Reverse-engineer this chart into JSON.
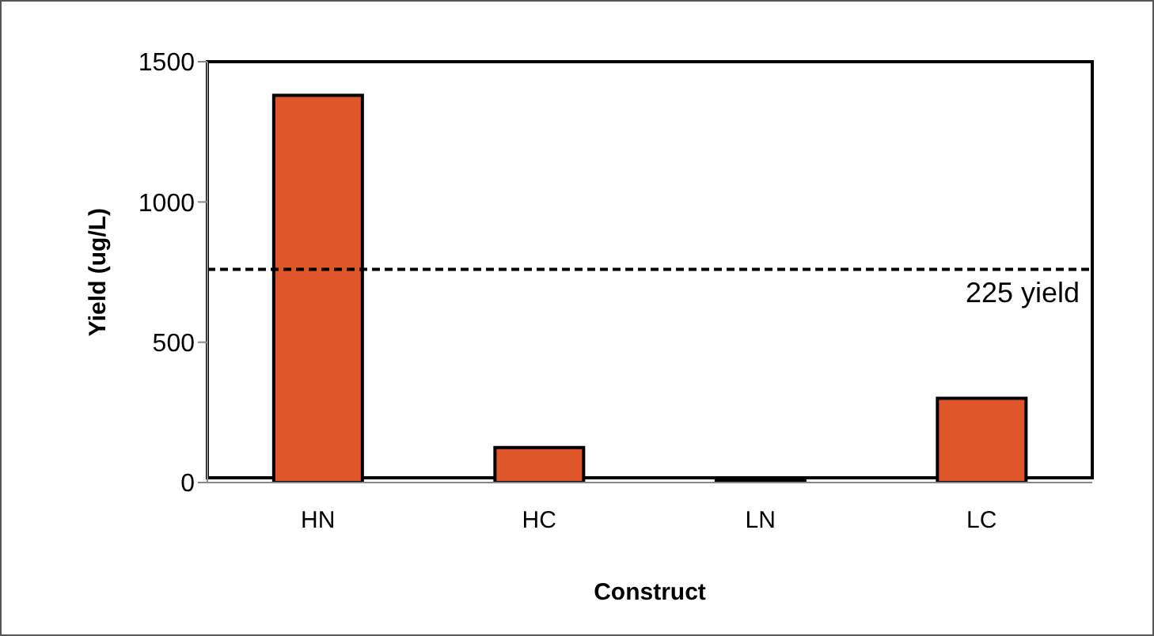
{
  "chart_data": {
    "type": "bar",
    "xlabel": "Construct",
    "ylabel": "Yield (ug/L)",
    "categories": [
      "HN",
      "HC",
      "LN",
      "LC"
    ],
    "values": [
      1380,
      125,
      7,
      300
    ],
    "color": "#e0562b",
    "ylim": [
      0,
      1500
    ],
    "yticks": [
      0,
      500,
      1000,
      1500
    ],
    "grid": false,
    "legend": false,
    "ref_lines": [
      {
        "axis": "y",
        "value": 760,
        "label": "225 yield",
        "color": "#000000",
        "line_style": "dashed"
      }
    ]
  }
}
